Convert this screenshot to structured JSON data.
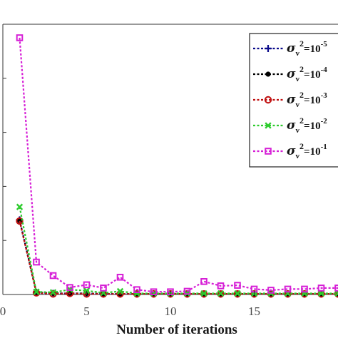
{
  "chart_data": {
    "type": "line",
    "xlabel": "Number of iterations",
    "ylabel": "",
    "title": "",
    "xlim": [
      0,
      20
    ],
    "ylim": [
      0,
      0.5
    ],
    "x_ticks": [
      0,
      5,
      10,
      15
    ],
    "x_tick_labels": [
      "0",
      "5",
      "10",
      "15"
    ],
    "y_ticks": [
      0,
      0.1,
      0.2,
      0.3,
      0.4
    ],
    "grid": false,
    "legend_position": "top-right",
    "x": [
      1,
      2,
      3,
      4,
      5,
      6,
      7,
      8,
      9,
      10,
      11,
      12,
      13,
      14,
      15,
      16,
      17,
      18,
      19,
      20
    ],
    "series": [
      {
        "name": "σ_v^2=10^-5",
        "legend_base": "σ",
        "legend_sub": "v",
        "legend_sup": "2",
        "legend_rest": "=10",
        "legend_exp": "-5",
        "color": "#0a0a8a",
        "marker": "plus",
        "values": [
          0.138,
          0.004,
          0.002,
          0.002,
          0.002,
          0.001,
          0.001,
          0.001,
          0.001,
          0.001,
          0.001,
          0.001,
          0.001,
          0.001,
          0.001,
          0.001,
          0.001,
          0.001,
          0.001,
          0.001
        ]
      },
      {
        "name": "σ_v^2=10^-4",
        "legend_base": "σ",
        "legend_sub": "v",
        "legend_sup": "2",
        "legend_rest": "=10",
        "legend_exp": "-4",
        "color": "#000000",
        "marker": "dot",
        "values": [
          0.137,
          0.004,
          0.002,
          0.002,
          0.002,
          0.001,
          0.001,
          0.001,
          0.001,
          0.001,
          0.001,
          0.001,
          0.001,
          0.001,
          0.001,
          0.001,
          0.001,
          0.001,
          0.001,
          0.001
        ]
      },
      {
        "name": "σ_v^2=10^-3",
        "legend_base": "σ",
        "legend_sub": "v",
        "legend_sup": "2",
        "legend_rest": "=10",
        "legend_exp": "-3",
        "color": "#c01010",
        "marker": "circle",
        "values": [
          0.136,
          0.003,
          0.001,
          0.002,
          0.001,
          0.001,
          0.001,
          0.001,
          0.001,
          0.001,
          0.001,
          0.001,
          0.001,
          0.001,
          0.001,
          0.001,
          0.001,
          0.001,
          0.001,
          0.001
        ]
      },
      {
        "name": "σ_v^2=10^-2",
        "legend_base": "σ",
        "legend_sub": "v",
        "legend_sup": "2",
        "legend_rest": "=10",
        "legend_exp": "-2",
        "color": "#2ecc2e",
        "marker": "x",
        "values": [
          0.162,
          0.005,
          0.004,
          0.009,
          0.007,
          0.003,
          0.006,
          0.002,
          0.002,
          0.002,
          0.002,
          0.002,
          0.002,
          0.002,
          0.002,
          0.002,
          0.002,
          0.002,
          0.002,
          0.002
        ]
      },
      {
        "name": "σ_v^2=10^-1",
        "legend_base": "σ",
        "legend_sub": "v",
        "legend_sup": "2",
        "legend_rest": "=10",
        "legend_exp": "-1",
        "color": "#d61fd6",
        "marker": "square",
        "values": [
          0.475,
          0.06,
          0.035,
          0.013,
          0.018,
          0.012,
          0.032,
          0.009,
          0.005,
          0.005,
          0.006,
          0.024,
          0.016,
          0.017,
          0.01,
          0.008,
          0.01,
          0.01,
          0.012,
          0.012
        ]
      }
    ]
  }
}
